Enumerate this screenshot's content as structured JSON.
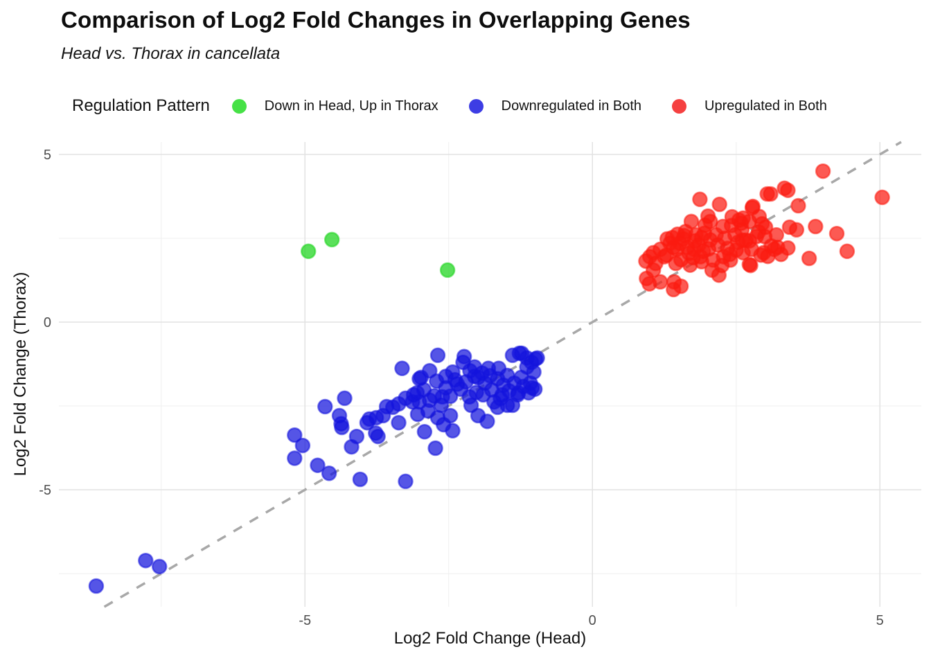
{
  "header": {
    "title": "Comparison of Log2 Fold Changes in Overlapping Genes",
    "subtitle": "Head vs. Thorax in cancellata"
  },
  "legend": {
    "title": "Regulation Pattern",
    "items": [
      {
        "label": "Down in Head, Up in Thorax",
        "color": "#46e146"
      },
      {
        "label": "Downregulated in Both",
        "color": "#3d3de4"
      },
      {
        "label": "Upregulated in Both",
        "color": "#f54040"
      }
    ]
  },
  "chart_data": {
    "type": "scatter",
    "title": "Comparison of Log2 Fold Changes in Overlapping Genes",
    "subtitle": "Head vs. Thorax in cancellata",
    "xlabel": "Log2 Fold Change (Head)",
    "ylabel": "Log2 Fold Change (Thorax)",
    "legend_title": "Regulation Pattern",
    "legend_position": "top",
    "grid": true,
    "xlim": [
      -9.28,
      5.72
    ],
    "ylim": [
      -8.49,
      5.37
    ],
    "x_major_ticks": [
      -5,
      0,
      5
    ],
    "x_minor_ticks": [
      -7.5,
      -2.5,
      2.5
    ],
    "y_major_ticks": [
      -5,
      0,
      5
    ],
    "y_minor_ticks": [
      -7.5,
      -2.5,
      2.5
    ],
    "reference_line": {
      "equation": "y = x",
      "style": "dashed",
      "color": "#a8a8a8"
    },
    "style": {
      "grid_major_color": "#e2e2e2",
      "grid_minor_color": "#efefef",
      "tick_label_color": "#4d4d4d",
      "point_opacity": 0.72
    },
    "series": [
      {
        "name": "Downregulated in Both",
        "color": "#1414dc",
        "points": [
          [
            -8.63,
            -7.87
          ],
          [
            -7.77,
            -7.11
          ],
          [
            -7.53,
            -7.29
          ],
          [
            -5.18,
            -3.37
          ],
          [
            -5.04,
            -3.68
          ],
          [
            -5.18,
            -4.06
          ],
          [
            -4.78,
            -4.27
          ],
          [
            -4.58,
            -4.51
          ],
          [
            -4.04,
            -4.69
          ],
          [
            -3.25,
            -4.75
          ],
          [
            -4.65,
            -2.52
          ],
          [
            -4.31,
            -2.27
          ],
          [
            -4.37,
            -3.03
          ],
          [
            -4.36,
            -3.14
          ],
          [
            -4.1,
            -3.41
          ],
          [
            -4.19,
            -3.72
          ],
          [
            -4.4,
            -2.79
          ],
          [
            -3.88,
            -2.89
          ],
          [
            -3.31,
            -1.38
          ],
          [
            -3.25,
            -2.27
          ],
          [
            -3.11,
            -2.17
          ],
          [
            -3.47,
            -2.54
          ],
          [
            -3.37,
            -2.44
          ],
          [
            -3.64,
            -2.79
          ],
          [
            -3.76,
            -2.85
          ],
          [
            -3.37,
            -3.0
          ],
          [
            -3.92,
            -3.0
          ],
          [
            -3.77,
            -3.31
          ],
          [
            -3.73,
            -3.41
          ],
          [
            -3.58,
            -2.52
          ],
          [
            -3.13,
            -2.38
          ],
          [
            -3.04,
            -2.75
          ],
          [
            -3.01,
            -1.69
          ],
          [
            -2.69,
            -0.99
          ],
          [
            -2.83,
            -1.45
          ],
          [
            -2.98,
            -1.65
          ],
          [
            -2.71,
            -1.76
          ],
          [
            -2.43,
            -1.49
          ],
          [
            -2.39,
            -1.72
          ],
          [
            -2.55,
            -1.96
          ],
          [
            -2.29,
            -2.0
          ],
          [
            -2.93,
            -2.02
          ],
          [
            -3.05,
            -2.11
          ],
          [
            -3.01,
            -2.38
          ],
          [
            -2.83,
            -2.33
          ],
          [
            -2.61,
            -2.23
          ],
          [
            -2.47,
            -2.21
          ],
          [
            -2.63,
            -2.48
          ],
          [
            -2.86,
            -2.65
          ],
          [
            -2.69,
            -2.85
          ],
          [
            -2.47,
            -2.79
          ],
          [
            -2.59,
            -3.06
          ],
          [
            -2.43,
            -3.24
          ],
          [
            -2.92,
            -3.27
          ],
          [
            -2.73,
            -3.76
          ],
          [
            -2.23,
            -1.03
          ],
          [
            -2.25,
            -1.2
          ],
          [
            -2.05,
            -1.34
          ],
          [
            -2.14,
            -2.23
          ],
          [
            -2.11,
            -2.48
          ],
          [
            -1.9,
            -2.17
          ],
          [
            -1.99,
            -2.79
          ],
          [
            -1.83,
            -2.96
          ],
          [
            -1.71,
            -2.38
          ],
          [
            -1.65,
            -2.54
          ],
          [
            -1.48,
            -2.48
          ],
          [
            -1.57,
            -2.17
          ],
          [
            -1.87,
            -1.82
          ],
          [
            -1.99,
            -1.65
          ],
          [
            -2.13,
            -1.45
          ],
          [
            -1.81,
            -1.38
          ],
          [
            -1.63,
            -1.38
          ],
          [
            -1.65,
            -1.69
          ],
          [
            -1.48,
            -1.59
          ],
          [
            -1.39,
            -0.99
          ],
          [
            -1.27,
            -0.93
          ],
          [
            -1.14,
            -1.07
          ],
          [
            -1.06,
            -1.2
          ],
          [
            -0.99,
            -1.1
          ],
          [
            -1.14,
            -1.34
          ],
          [
            -1.02,
            -1.49
          ],
          [
            -1.24,
            -1.65
          ],
          [
            -1.36,
            -1.82
          ],
          [
            -1.2,
            -1.92
          ],
          [
            -1.08,
            -1.82
          ],
          [
            -1.0,
            -2.0
          ],
          [
            -1.3,
            -2.17
          ],
          [
            -1.11,
            -2.11
          ],
          [
            -1.39,
            -2.48
          ],
          [
            -0.96,
            -1.07
          ],
          [
            -1.05,
            -1.96
          ],
          [
            -1.29,
            -2.11
          ],
          [
            -1.23,
            -0.93
          ],
          [
            -2.35,
            -1.85
          ],
          [
            -2.02,
            -2.1
          ],
          [
            -2.55,
            -1.62
          ],
          [
            -1.75,
            -2.02
          ],
          [
            -1.55,
            -1.88
          ],
          [
            -2.2,
            -1.78
          ],
          [
            -1.92,
            -1.52
          ],
          [
            -2.75,
            -2.2
          ],
          [
            -1.45,
            -2.05
          ],
          [
            -1.6,
            -2.28
          ],
          [
            -2.05,
            -1.62
          ],
          [
            -1.78,
            -1.6
          ]
        ]
      },
      {
        "name": "Upregulated in Both",
        "color": "#fb1b10",
        "points": [
          [
            1.87,
            3.66
          ],
          [
            2.21,
            3.51
          ],
          [
            3.04,
            3.82
          ],
          [
            2.79,
            3.45
          ],
          [
            1.72,
            3.0
          ],
          [
            2.01,
            3.16
          ],
          [
            1.96,
            2.89
          ],
          [
            2.27,
            2.85
          ],
          [
            2.43,
            3.14
          ],
          [
            2.59,
            2.95
          ],
          [
            2.73,
            3.0
          ],
          [
            2.89,
            2.69
          ],
          [
            1.39,
            2.52
          ],
          [
            1.6,
            2.58
          ],
          [
            1.78,
            2.42
          ],
          [
            1.9,
            2.52
          ],
          [
            1.47,
            2.17
          ],
          [
            1.18,
            2.17
          ],
          [
            1.06,
            2.07
          ],
          [
            0.93,
            1.82
          ],
          [
            1.29,
            2.0
          ],
          [
            1.41,
            2.23
          ],
          [
            1.65,
            2.23
          ],
          [
            1.77,
            2.17
          ],
          [
            1.93,
            2.11
          ],
          [
            1.75,
            1.92
          ],
          [
            1.9,
            1.8
          ],
          [
            1.54,
            1.86
          ],
          [
            1.06,
            1.55
          ],
          [
            0.94,
            1.3
          ],
          [
            1.18,
            1.2
          ],
          [
            0.99,
            1.14
          ],
          [
            1.42,
            1.2
          ],
          [
            1.54,
            1.07
          ],
          [
            1.41,
            0.97
          ],
          [
            2.08,
            1.55
          ],
          [
            2.2,
            1.4
          ],
          [
            2.25,
            1.69
          ],
          [
            2.39,
            2.02
          ],
          [
            2.53,
            2.38
          ],
          [
            2.67,
            2.44
          ],
          [
            2.77,
            2.17
          ],
          [
            2.98,
            2.07
          ],
          [
            3.16,
            2.17
          ],
          [
            2.73,
            1.72
          ],
          [
            3.11,
            2.27
          ],
          [
            4.01,
            4.5
          ],
          [
            5.04,
            3.72
          ],
          [
            3.34,
            3.99
          ],
          [
            3.4,
            3.93
          ],
          [
            3.1,
            3.82
          ],
          [
            3.58,
            3.47
          ],
          [
            2.78,
            3.41
          ],
          [
            2.95,
            2.93
          ],
          [
            3.01,
            2.83
          ],
          [
            3.43,
            2.83
          ],
          [
            3.55,
            2.75
          ],
          [
            3.88,
            2.85
          ],
          [
            4.25,
            2.64
          ],
          [
            4.43,
            2.11
          ],
          [
            3.77,
            1.9
          ],
          [
            3.4,
            2.21
          ],
          [
            3.22,
            2.23
          ],
          [
            3.28,
            2.02
          ],
          [
            3.05,
            1.96
          ],
          [
            2.93,
            2.0
          ],
          [
            2.75,
            1.69
          ],
          [
            2.73,
            2.42
          ],
          [
            2.61,
            2.44
          ],
          [
            2.55,
            3.04
          ],
          [
            1.52,
            2.35
          ],
          [
            1.68,
            2.05
          ],
          [
            1.85,
            2.3
          ],
          [
            2.05,
            2.45
          ],
          [
            2.15,
            2.6
          ],
          [
            2.3,
            2.5
          ],
          [
            1.95,
            2.65
          ],
          [
            1.62,
            2.7
          ],
          [
            1.48,
            2.62
          ],
          [
            1.35,
            2.35
          ],
          [
            1.25,
            1.95
          ],
          [
            1.45,
            1.75
          ],
          [
            1.7,
            1.7
          ],
          [
            1.88,
            1.95
          ],
          [
            2.02,
            2.18
          ],
          [
            2.18,
            2.3
          ],
          [
            2.35,
            2.2
          ],
          [
            2.48,
            2.6
          ],
          [
            2.6,
            2.75
          ],
          [
            2.5,
            2.15
          ],
          [
            2.28,
            1.95
          ],
          [
            2.1,
            1.85
          ],
          [
            1.8,
            2.6
          ],
          [
            1.58,
            2.48
          ],
          [
            2.42,
            2.88
          ],
          [
            2.62,
            3.1
          ],
          [
            2.85,
            2.55
          ],
          [
            3.0,
            2.55
          ],
          [
            2.9,
            3.15
          ],
          [
            3.2,
            2.6
          ],
          [
            1.1,
            1.75
          ],
          [
            1.0,
            1.95
          ],
          [
            1.3,
            2.48
          ],
          [
            2.4,
            1.85
          ],
          [
            2.05,
            3.0
          ],
          [
            2.62,
            2.07
          ]
        ]
      },
      {
        "name": "Down in Head, Up in Thorax",
        "color": "#1bd41b",
        "points": [
          [
            -4.94,
            2.11
          ],
          [
            -4.53,
            2.46
          ],
          [
            -2.52,
            1.55
          ]
        ]
      }
    ]
  }
}
